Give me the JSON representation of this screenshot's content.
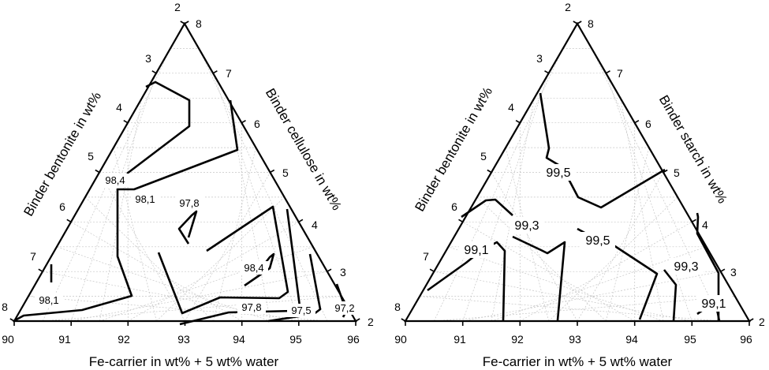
{
  "chart_data": [
    {
      "type": "ternary-contour",
      "bottom_axis": {
        "label": "Fe-carrier in wt% + 5 wt% water",
        "ticks": [
          90,
          91,
          92,
          93,
          94,
          95,
          96
        ]
      },
      "left_axis": {
        "label": "Binder bentonite in wt%",
        "ticks": [
          2,
          3,
          4,
          5,
          6,
          7,
          8
        ]
      },
      "right_axis": {
        "label": "Binder cellulose in wt%",
        "ticks": [
          2,
          3,
          4,
          5,
          6,
          7,
          8
        ]
      },
      "grid": true,
      "contours": [
        {
          "label": "98,4",
          "level": 98.4
        },
        {
          "label": "98,1",
          "level": 98.1
        },
        {
          "label": "97,8",
          "level": 97.8
        },
        {
          "label": "98,4",
          "level": 98.4
        },
        {
          "label": "98,1",
          "level": 98.1
        },
        {
          "label": "97,8",
          "level": 97.8
        },
        {
          "label": "97,5",
          "level": 97.5
        },
        {
          "label": "97,2",
          "level": 97.2
        }
      ]
    },
    {
      "type": "ternary-contour",
      "bottom_axis": {
        "label": "Fe-carrier in wt% + 5 wt% water",
        "ticks": [
          90,
          91,
          92,
          93,
          94,
          95,
          96
        ]
      },
      "left_axis": {
        "label": "Binder bentonite in wt%",
        "ticks": [
          2,
          3,
          4,
          5,
          6,
          7,
          8
        ]
      },
      "right_axis": {
        "label": "Binder starch in wt%",
        "ticks": [
          2,
          3,
          4,
          5,
          6,
          7,
          8
        ]
      },
      "grid": true,
      "contours": [
        {
          "label": "99,5",
          "level": 99.5
        },
        {
          "label": "99,3",
          "level": 99.3
        },
        {
          "label": "99,1",
          "level": 99.1
        },
        {
          "label": "99,5",
          "level": 99.5
        },
        {
          "label": "99,3",
          "level": 99.3
        },
        {
          "label": "99,1",
          "level": 99.1
        }
      ]
    }
  ]
}
